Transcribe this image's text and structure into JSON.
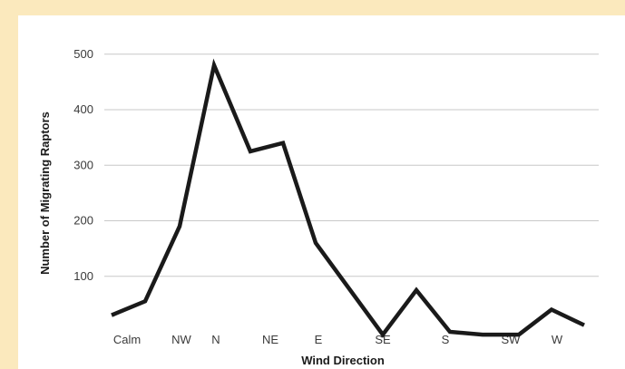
{
  "chart_data": {
    "type": "line",
    "title": "",
    "xlabel": "Wind Direction",
    "ylabel": "Number of Migrating Raptors",
    "ylim": [
      0,
      500
    ],
    "yticks": [
      100,
      200,
      300,
      400,
      500
    ],
    "grid": true,
    "x_tick_labels": [
      "Calm",
      "NW",
      "N",
      "NE",
      "E",
      "SE",
      "S",
      "SW",
      "W"
    ],
    "series": [
      {
        "values": [
          {
            "x": "Calm",
            "y": 30
          },
          {
            "x": "Calm–NW",
            "y": 55
          },
          {
            "x": "NW",
            "y": 190
          },
          {
            "x": "N",
            "y": 480
          },
          {
            "x": "N–NE",
            "y": 325
          },
          {
            "x": "NE",
            "y": 340
          },
          {
            "x": "E",
            "y": 160
          },
          {
            "x": "SE",
            "y": -5
          },
          {
            "x": "SE–S",
            "y": 75
          },
          {
            "x": "S",
            "y": 0
          },
          {
            "x": "S–SW",
            "y": -5
          },
          {
            "x": "SW",
            "y": -5
          },
          {
            "x": "W",
            "y": 40
          },
          {
            "x": "W+",
            "y": 12
          }
        ],
        "color": "#1a1a1a"
      }
    ]
  }
}
